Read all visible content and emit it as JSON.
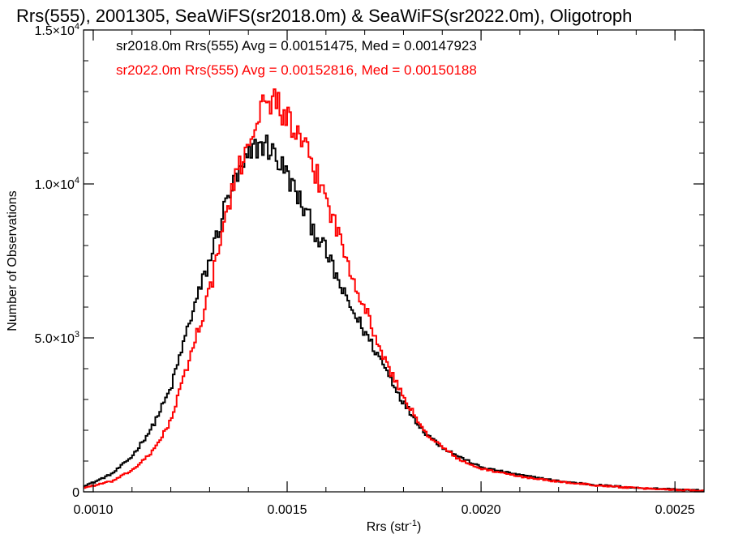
{
  "chart_data": {
    "type": "line",
    "title": "Rrs(555), 2001305, SeaWiFS(sr2018.0m) & SeaWiFS(sr2022.0m), Oligotroph",
    "xlabel_main": "Rrs (str",
    "xlabel_sup": "-1",
    "xlabel_close": ")",
    "ylabel": "Number of Observations",
    "xlim": [
      0.000975,
      0.002575
    ],
    "ylim": [
      0,
      15000
    ],
    "x_ticks": [
      {
        "value": 0.001,
        "label": "0.0010"
      },
      {
        "value": 0.0015,
        "label": "0.0015"
      },
      {
        "value": 0.002,
        "label": "0.0020"
      },
      {
        "value": 0.0025,
        "label": "0.0025"
      }
    ],
    "x_minor_step": 0.0001,
    "y_ticks": [
      {
        "value": 0,
        "mant": "0",
        "exp": ""
      },
      {
        "value": 5000,
        "mant": "5.0×10",
        "exp": "3"
      },
      {
        "value": 10000,
        "mant": "1.0×10",
        "exp": "4"
      },
      {
        "value": 15000,
        "mant": "1.5×10",
        "exp": "4"
      }
    ],
    "y_minor_step": 1000,
    "grid": false,
    "legend_position": "top-left",
    "bin_width": 5e-06,
    "series": [
      {
        "name": "sr2018.0m Rrs(555) Avg = 0.00151475, Med = 0.00147923",
        "color": "#000000",
        "x": [
          0.000975,
          0.001,
          0.00105,
          0.0011,
          0.00115,
          0.0012,
          0.00125,
          0.0013,
          0.00135,
          0.0014,
          0.00142,
          0.00144,
          0.00146,
          0.00148,
          0.0015,
          0.00155,
          0.0016,
          0.00165,
          0.0017,
          0.00175,
          0.0018,
          0.00185,
          0.0019,
          0.00195,
          0.002,
          0.0021,
          0.0022,
          0.0023,
          0.0024,
          0.0025,
          0.002575
        ],
        "y": [
          200,
          300,
          600,
          1150,
          2050,
          3350,
          5600,
          7500,
          9700,
          10800,
          11200,
          11300,
          11100,
          10700,
          10300,
          9000,
          7800,
          6300,
          5200,
          4100,
          2900,
          2000,
          1450,
          1100,
          800,
          550,
          350,
          220,
          130,
          80,
          40
        ]
      },
      {
        "name": "sr2022.0m Rrs(555) Avg = 0.00152816, Med = 0.00150188",
        "color": "#ff0000",
        "x": [
          0.000975,
          0.001,
          0.00105,
          0.0011,
          0.00115,
          0.0012,
          0.00125,
          0.0013,
          0.00135,
          0.0014,
          0.00142,
          0.00144,
          0.00146,
          0.00148,
          0.0015,
          0.00155,
          0.0016,
          0.00165,
          0.0017,
          0.00175,
          0.0018,
          0.00185,
          0.0019,
          0.00195,
          0.002,
          0.0021,
          0.0022,
          0.0023,
          0.0024,
          0.0025,
          0.002575
        ],
        "y": [
          130,
          200,
          350,
          700,
          1250,
          2300,
          4400,
          6500,
          9400,
          11400,
          12100,
          12500,
          12800,
          12600,
          12100,
          11000,
          9600,
          7700,
          6000,
          4300,
          3100,
          2000,
          1450,
          1000,
          750,
          500,
          330,
          210,
          120,
          70,
          35
        ]
      }
    ]
  }
}
